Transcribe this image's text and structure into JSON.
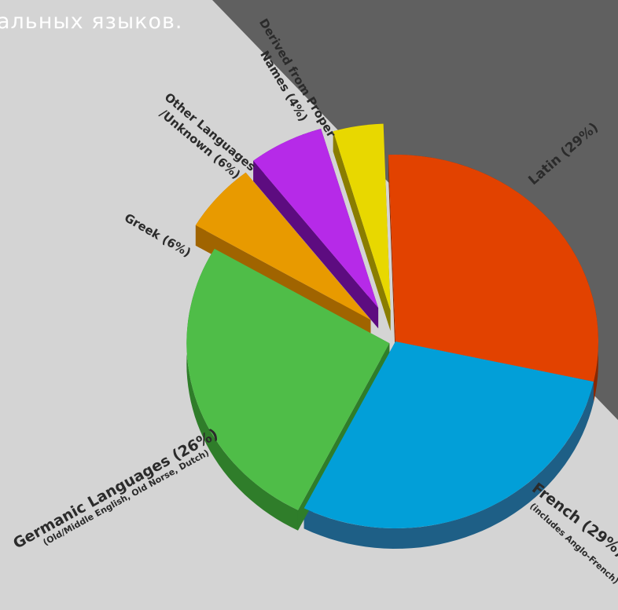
{
  "page": {
    "caption": "альных языков.",
    "colors": {
      "background_light": "#d4d4d4",
      "background_dark": "#606060",
      "caption": "#ffffff"
    }
  },
  "chart_data": {
    "type": "pie",
    "title": "",
    "style": "3d-exploded",
    "series": [
      {
        "label": "Latin",
        "value_label": "(29%)",
        "sublabel": "",
        "value": 29,
        "color": "#e24200",
        "side_color": "#8a2800"
      },
      {
        "label": "French",
        "value_label": "(29%)",
        "sublabel": "(includes Anglo-French)",
        "value": 29,
        "color": "#029fd8",
        "side_color": "#1e5f86"
      },
      {
        "label": "Germanic Languages",
        "value_label": "(26%)",
        "sublabel": "(Old/Middle English, Old Norse, Dutch)",
        "value": 26,
        "color": "#4fbd48",
        "side_color": "#2f7d2a"
      },
      {
        "label": "Greek",
        "value_label": "(6%)",
        "sublabel": "",
        "value": 6,
        "color": "#e89a00",
        "side_color": "#a06400"
      },
      {
        "label": "Other Languages /Unknown",
        "value_label": "(6%)",
        "sublabel": "",
        "value": 6,
        "color": "#b62ae8",
        "side_color": "#5d0c80"
      },
      {
        "label": "Derived from Proper Names",
        "value_label": "(4%)",
        "sublabel": "",
        "value": 4,
        "color": "#e8d800",
        "side_color": "#8a7d00"
      }
    ],
    "label_lines": {
      "latin": [
        "Latin (29%)"
      ],
      "french": [
        "French (29%)"
      ],
      "french_sub": [
        "(includes Anglo-French)"
      ],
      "germanic": [
        "Germanic Languages (26%)"
      ],
      "germanic_sub": [
        "(Old/Middle English, Old Norse, Dutch)"
      ],
      "greek": [
        "Greek (6%)"
      ],
      "other": [
        "Other Languages",
        "/Unknown (6%)"
      ],
      "proper": [
        "Derived from Proper",
        "Names (4%)"
      ]
    }
  }
}
